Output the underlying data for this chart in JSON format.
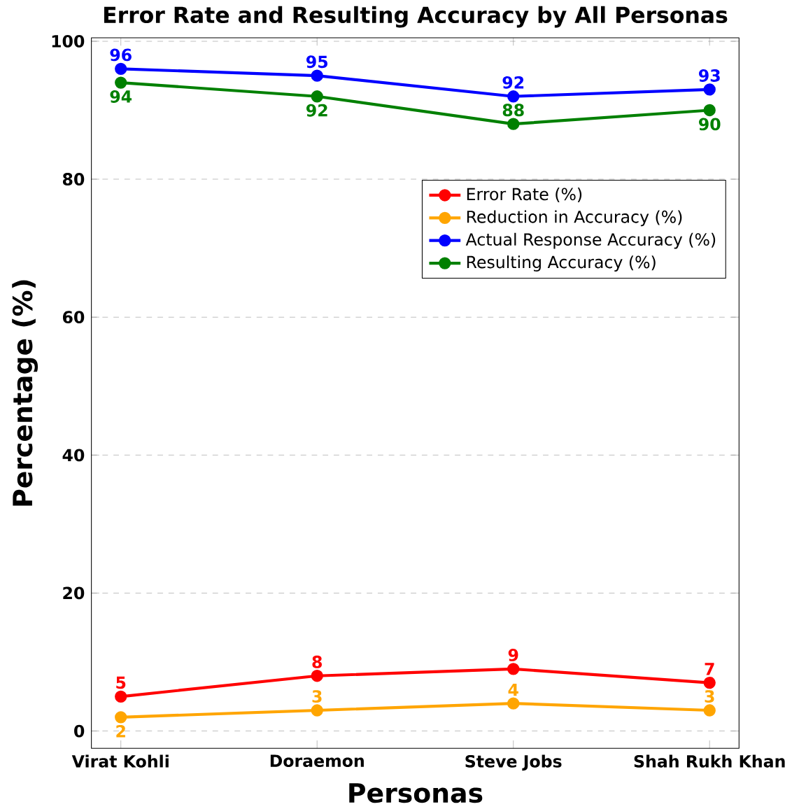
{
  "chart_data": {
    "type": "line",
    "title": "Error Rate and Resulting Accuracy by All Personas",
    "xlabel": "Personas",
    "ylabel": "Percentage (%)",
    "categories": [
      "Virat Kohli",
      "Doraemon",
      "Steve Jobs",
      "Shah Rukh Khan"
    ],
    "series": [
      {
        "name": "Error Rate (%)",
        "color": "#ff0000",
        "values": [
          5,
          8,
          9,
          7
        ]
      },
      {
        "name": "Reduction in Accuracy (%)",
        "color": "#ffa500",
        "values": [
          2,
          3,
          4,
          3
        ]
      },
      {
        "name": "Actual Response Accuracy (%)",
        "color": "#0000ff",
        "values": [
          96,
          95,
          92,
          93
        ]
      },
      {
        "name": "Resulting Accuracy (%)",
        "color": "#008000",
        "values": [
          94,
          92,
          88,
          90
        ]
      }
    ],
    "ylim": [
      -2.5,
      100.5
    ],
    "yticks": [
      0,
      20,
      40,
      60,
      80,
      100
    ],
    "grid": "y",
    "legend": "top right",
    "marker": "circle",
    "line_style": "solid",
    "data_labels": true
  }
}
